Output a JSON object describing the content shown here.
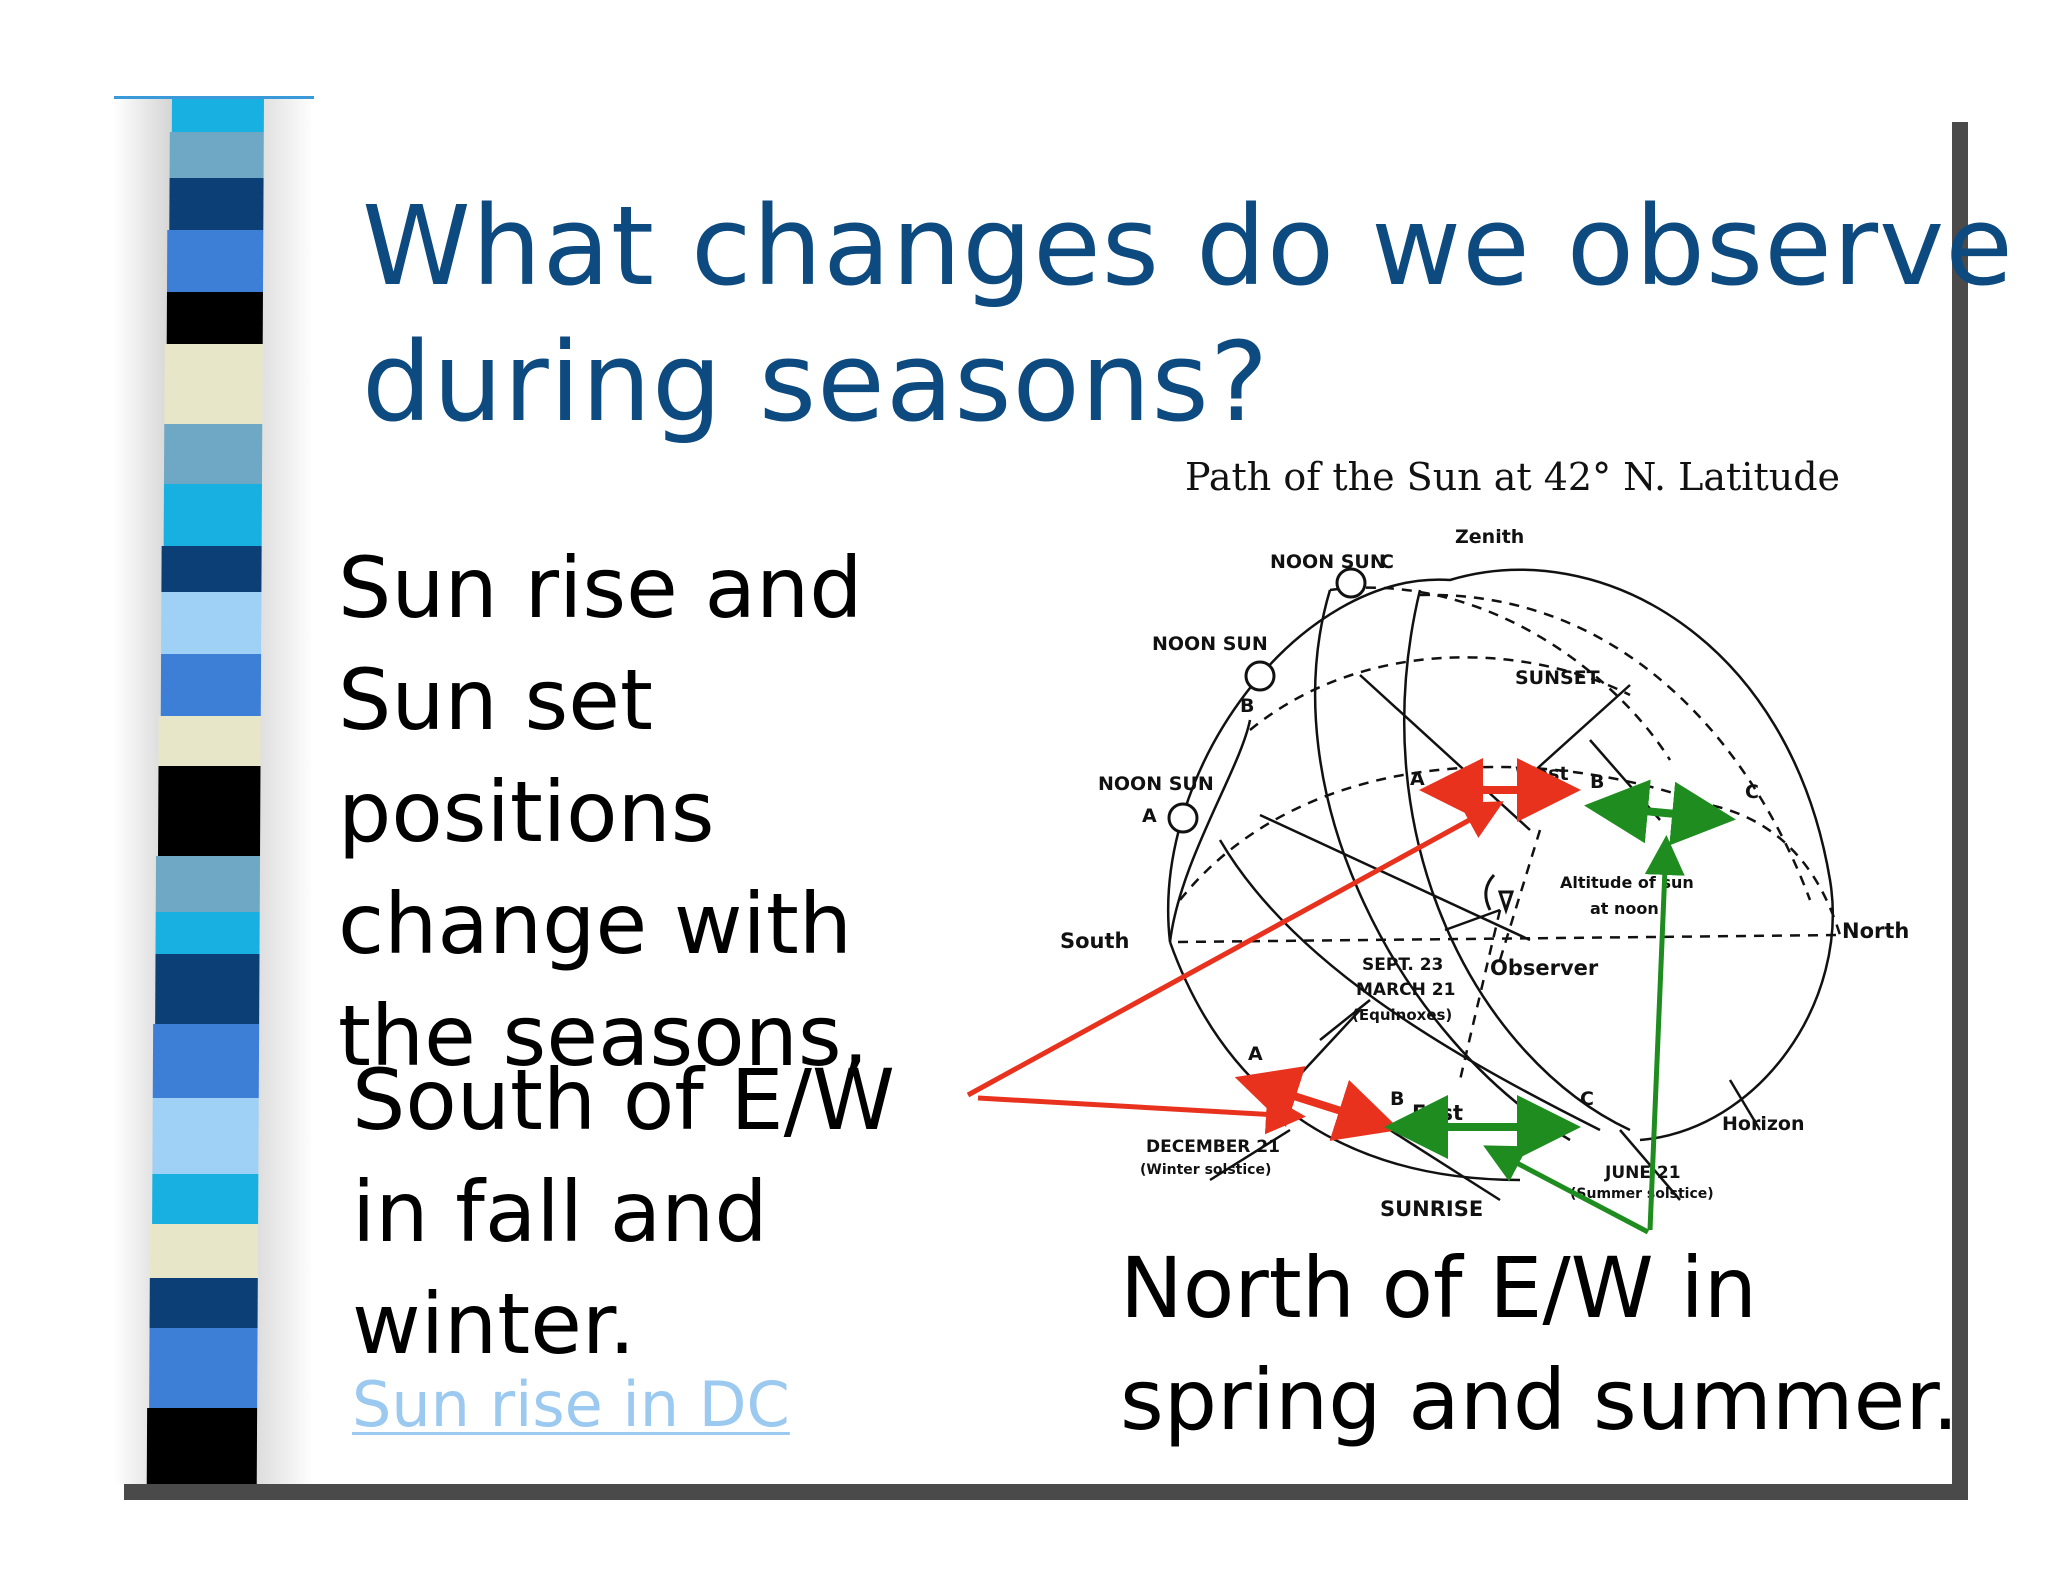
{
  "slide": {
    "title_line1": "What changes do we observe",
    "title_line2": "during seasons?",
    "text_block_1": "Sun rise and Sun set positions change with the seasons,",
    "text_block_2": "South of E/W in fall and winter.",
    "text_block_3": "North of E/W in spring and summer.",
    "link_label": "Sun rise in DC"
  },
  "diagram": {
    "title": "Path of the Sun at 42° N. Latitude",
    "labels": {
      "zenith": "Zenith",
      "noon_sun_c": "NOON SUN",
      "noon_sun_b": "NOON SUN",
      "noon_sun_a": "NOON SUN",
      "letter_a": "A",
      "letter_b": "B",
      "letter_c": "C",
      "sunset": "SUNSET",
      "west": "West",
      "altitude_line1": "Altitude of sun",
      "altitude_line2": "at noon",
      "south": "South",
      "north": "North",
      "observer": "Observer",
      "sept": "SEPT. 23",
      "march": "MARCH 21",
      "equinoxes": "(Equinoxes)",
      "east": "East",
      "december": "DECEMBER 21",
      "winter_solstice": "(Winter solstice)",
      "sunrise": "SUNRISE",
      "june": "JUNE 21",
      "summer_solstice": "(Summer solstice)",
      "horizon": "Horizon"
    }
  },
  "colors": {
    "title": "#0d4a7f",
    "red_arrow": "#e8321e",
    "green_arrow": "#1e8c1e",
    "link": "#9cc9f0"
  }
}
